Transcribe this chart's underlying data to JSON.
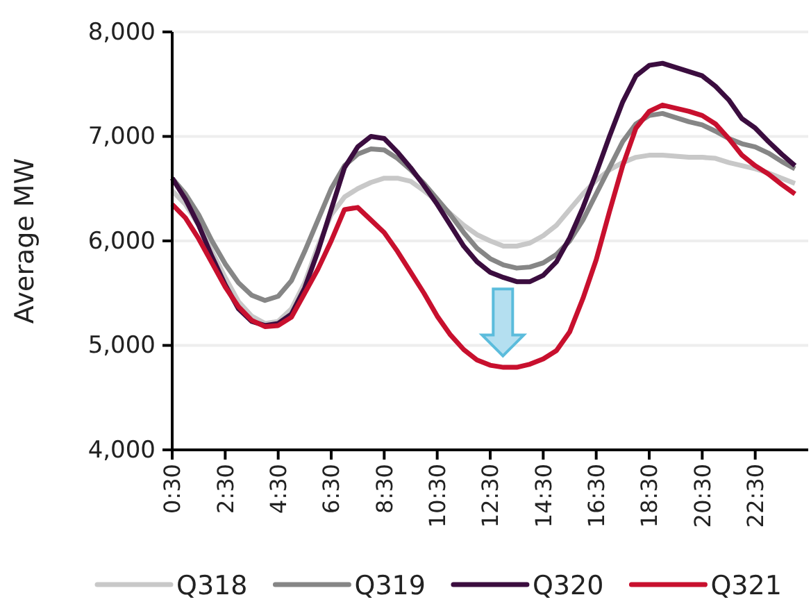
{
  "chart_data": {
    "type": "line",
    "ylabel": "Average MW",
    "x": [
      0.5,
      1,
      1.5,
      2,
      2.5,
      3,
      3.5,
      4,
      4.5,
      5,
      5.5,
      6,
      6.5,
      7,
      7.5,
      8,
      8.5,
      9,
      9.5,
      10,
      10.5,
      11,
      11.5,
      12,
      12.5,
      13,
      13.5,
      14,
      14.5,
      15,
      15.5,
      16,
      16.5,
      17,
      17.5,
      18,
      18.5,
      19,
      19.5,
      20,
      20.5,
      21,
      21.5,
      22,
      22.5,
      23,
      23.5,
      24
    ],
    "series": [
      {
        "name": "Q318",
        "color": "#c8c8c8",
        "values": [
          6480,
          6350,
          6150,
          5900,
          5650,
          5420,
          5280,
          5210,
          5230,
          5350,
          5600,
          5950,
          6250,
          6420,
          6500,
          6560,
          6600,
          6600,
          6570,
          6480,
          6380,
          6260,
          6150,
          6060,
          6000,
          5950,
          5950,
          5980,
          6050,
          6150,
          6300,
          6450,
          6580,
          6680,
          6750,
          6800,
          6820,
          6820,
          6810,
          6800,
          6800,
          6790,
          6750,
          6720,
          6690,
          6650,
          6600,
          6550
        ]
      },
      {
        "name": "Q319",
        "color": "#868686",
        "values": [
          6600,
          6450,
          6250,
          6000,
          5780,
          5600,
          5480,
          5430,
          5470,
          5620,
          5900,
          6200,
          6500,
          6720,
          6830,
          6880,
          6870,
          6790,
          6680,
          6550,
          6400,
          6250,
          6080,
          5930,
          5830,
          5770,
          5740,
          5750,
          5790,
          5870,
          6000,
          6200,
          6450,
          6700,
          6950,
          7120,
          7200,
          7220,
          7180,
          7140,
          7110,
          7050,
          6980,
          6930,
          6900,
          6840,
          6760,
          6690
        ]
      },
      {
        "name": "Q320",
        "color": "#3b0d3f",
        "values": [
          6600,
          6400,
          6150,
          5850,
          5580,
          5350,
          5230,
          5190,
          5210,
          5300,
          5550,
          5900,
          6300,
          6700,
          6900,
          7000,
          6980,
          6850,
          6700,
          6530,
          6350,
          6150,
          5950,
          5800,
          5700,
          5650,
          5610,
          5610,
          5670,
          5800,
          6030,
          6320,
          6650,
          7000,
          7330,
          7580,
          7680,
          7700,
          7660,
          7620,
          7580,
          7480,
          7350,
          7170,
          7080,
          6950,
          6830,
          6720
        ]
      },
      {
        "name": "Q321",
        "color": "#c8102e",
        "values": [
          6350,
          6220,
          6020,
          5790,
          5560,
          5370,
          5240,
          5180,
          5190,
          5270,
          5500,
          5730,
          6000,
          6300,
          6320,
          6200,
          6080,
          5900,
          5700,
          5500,
          5280,
          5100,
          4960,
          4860,
          4810,
          4790,
          4790,
          4820,
          4870,
          4950,
          5130,
          5450,
          5820,
          6280,
          6720,
          7080,
          7240,
          7300,
          7270,
          7240,
          7200,
          7120,
          6980,
          6820,
          6720,
          6640,
          6540,
          6450
        ]
      }
    ],
    "xlim": [
      0.5,
      24.5
    ],
    "xticks": [
      {
        "value": 0.5,
        "label": "0:30"
      },
      {
        "value": 2.5,
        "label": "2:30"
      },
      {
        "value": 4.5,
        "label": "4:30"
      },
      {
        "value": 6.5,
        "label": "6:30"
      },
      {
        "value": 8.5,
        "label": "8:30"
      },
      {
        "value": 10.5,
        "label": "10:30"
      },
      {
        "value": 12.5,
        "label": "12:30"
      },
      {
        "value": 14.5,
        "label": "14:30"
      },
      {
        "value": 16.5,
        "label": "16:30"
      },
      {
        "value": 18.5,
        "label": "18:30"
      },
      {
        "value": 20.5,
        "label": "20:30"
      },
      {
        "value": 22.5,
        "label": "22:30"
      }
    ],
    "ylim": [
      4000,
      8000
    ],
    "yticks": [
      {
        "value": 4000,
        "label": "4,000"
      },
      {
        "value": 5000,
        "label": "5,000"
      },
      {
        "value": 6000,
        "label": "6,000"
      },
      {
        "value": 7000,
        "label": "7,000"
      },
      {
        "value": 8000,
        "label": "8,000"
      }
    ],
    "grid": "y",
    "legend": "bottom",
    "marker": "none",
    "line_style": "solid"
  }
}
